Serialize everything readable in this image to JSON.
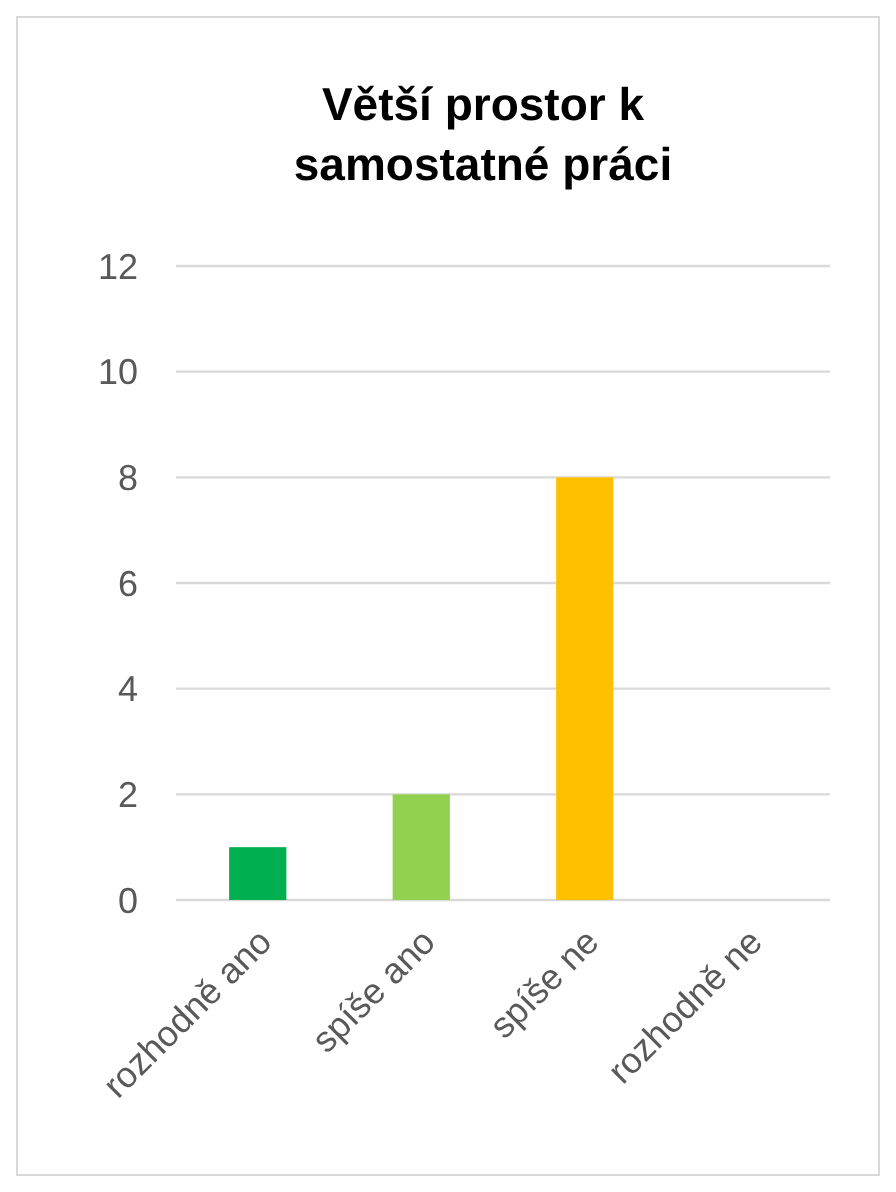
{
  "chart_data": {
    "type": "bar",
    "title": "Větší prostor k samostatné práci",
    "categories": [
      "rozhodně ano",
      "spíše ano",
      "spíše ne",
      "rozhodně ne"
    ],
    "values": [
      1,
      2,
      8,
      0
    ],
    "colors": [
      "#00b050",
      "#92d050",
      "#ffc000",
      "#ff0000"
    ],
    "ylim": [
      0,
      12
    ],
    "yticks": [
      0,
      2,
      4,
      6,
      8,
      10,
      12
    ],
    "grid": "y"
  }
}
